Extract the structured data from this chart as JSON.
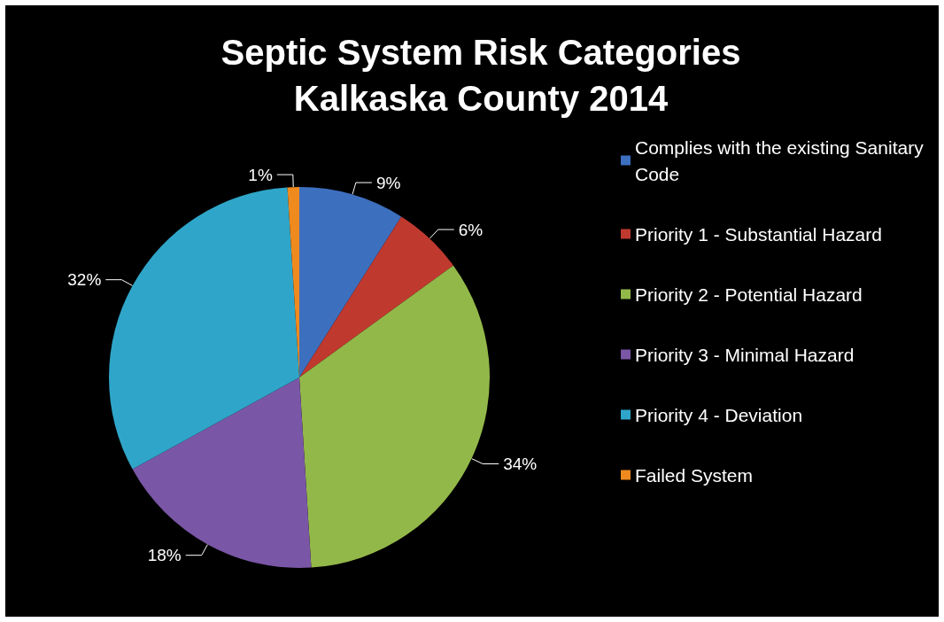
{
  "chart_data": {
    "type": "pie",
    "title": "Septic System Risk Categories\nKalkaska County 2014",
    "categories": [
      "Complies with the existing Sanitary Code",
      "Priority 1 - Substantial Hazard",
      "Priority 2 - Potential Hazard",
      "Priority 3 - Minimal Hazard",
      "Priority 4 - Deviation",
      "Failed System"
    ],
    "values": [
      9,
      6,
      34,
      18,
      32,
      1
    ],
    "colors": [
      "#3d6fbf",
      "#c0392f",
      "#93b84a",
      "#7a56a6",
      "#2fa6c9",
      "#ef8a1f"
    ],
    "value_labels": [
      "9%",
      "6%",
      "34%",
      "18%",
      "32%",
      "1%"
    ],
    "legend": "right"
  }
}
